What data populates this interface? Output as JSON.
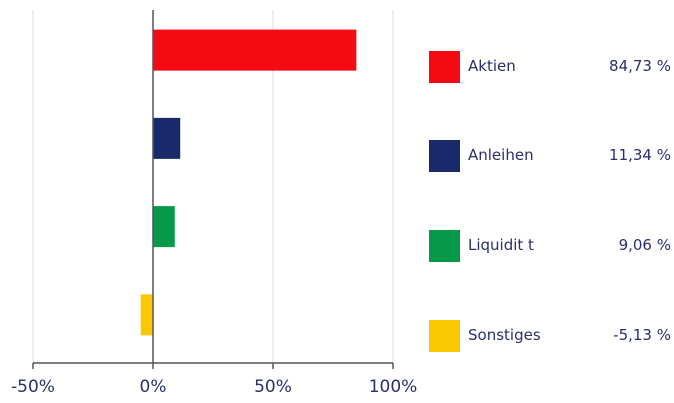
{
  "chart_data": {
    "type": "bar",
    "orientation": "horizontal",
    "categories": [
      "Aktien",
      "Anleihen",
      "Liquidit t",
      "Sonstiges"
    ],
    "values": [
      84.73,
      11.34,
      9.06,
      -5.13
    ],
    "value_labels": [
      "84,73 %",
      "11,34 %",
      "9,06 %",
      "-5,13 %"
    ],
    "colors": [
      "#f50a14",
      "#182a6b",
      "#07994a",
      "#f9c800"
    ],
    "xlim": [
      -50,
      100
    ],
    "xticks": [
      -50,
      0,
      50,
      100
    ],
    "xtick_labels": [
      "-50%",
      "0%",
      "50%",
      "100%"
    ],
    "grid": "vertical",
    "legend_position": "right"
  }
}
